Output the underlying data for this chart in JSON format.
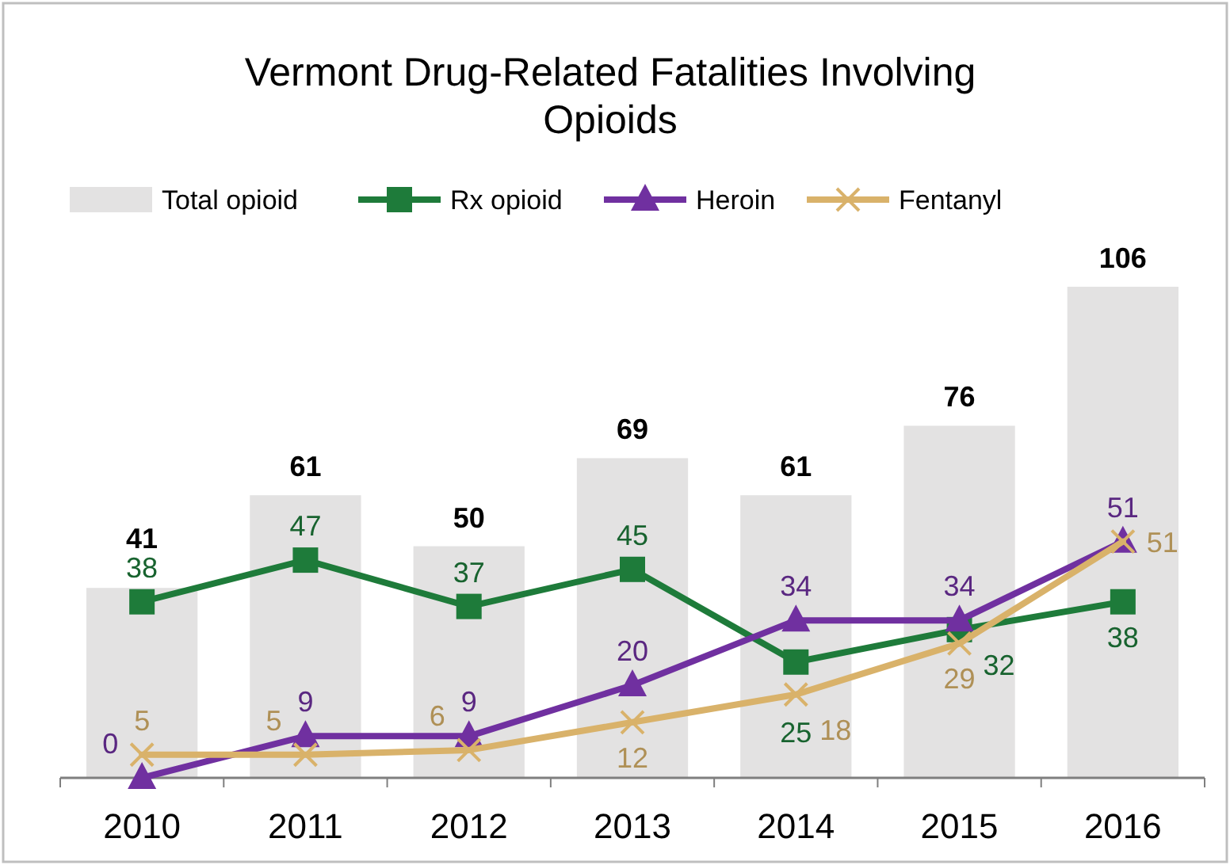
{
  "chart_data": {
    "type": "bar",
    "title": "Vermont Drug-Related Fatalities Involving Opioids",
    "categories": [
      "2010",
      "2011",
      "2012",
      "2013",
      "2014",
      "2015",
      "2016"
    ],
    "series": [
      {
        "name": "Total opioid",
        "color": "#e3e2e2",
        "values": [
          41,
          61,
          50,
          69,
          61,
          76,
          106
        ]
      },
      {
        "name": "Rx opioid",
        "type": "line",
        "color": "#1e7b3a",
        "marker": "square",
        "values": [
          38,
          47,
          37,
          45,
          25,
          32,
          38
        ]
      },
      {
        "name": "Heroin",
        "type": "line",
        "color": "#7030a0",
        "marker": "triangle",
        "values": [
          0,
          9,
          9,
          20,
          34,
          34,
          51
        ]
      },
      {
        "name": "Fentanyl",
        "type": "line",
        "color": "#d9b26a",
        "marker": "cross",
        "values": [
          5,
          5,
          6,
          12,
          18,
          29,
          51
        ]
      }
    ],
    "data_labels": true,
    "legend": "top"
  }
}
